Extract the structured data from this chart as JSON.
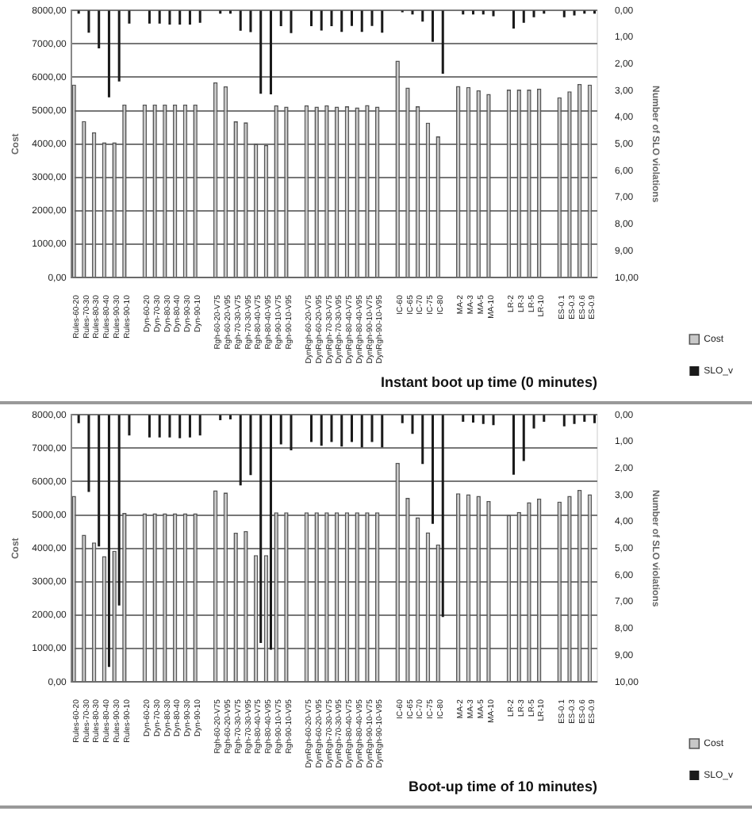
{
  "chart_data": [
    {
      "type": "bar",
      "xlabel": "Instant boot up time (0 minutes)",
      "ylabel": "Cost",
      "y2label": "Number of SLO violations",
      "categories": [
        "Rules-60-20",
        "Rules-70-30",
        "Rules-80-30",
        "Rules-80-40",
        "Rules-90-30",
        "Rules-90-10",
        null,
        "Dyn-60-20",
        "Dyn-70-30",
        "Dyn-80-30",
        "Dyn-80-40",
        "Dyn-90-30",
        "Dyn-90-10",
        null,
        "Rgh-60-20-V75",
        "Rgh-60-20-V95",
        "Rgh-70-30-V75",
        "Rgh-70-30-V95",
        "Rgh-80-40-V75",
        "Rgh-80-40-V95",
        "Rgh-90-10-V75",
        "Rgh-90-10-V95",
        null,
        "DynRgh-60-20-V75",
        "DynRgh-60-20-V95",
        "DynRgh-70-30-V75",
        "DynRgh-70-30-V95",
        "DynRgh-80-40-V75",
        "DynRgh-80-40-V95",
        "DynRgh-90-10-V75",
        "DynRgh-90-10-V95",
        null,
        "IC-60",
        "IC-65",
        "IC-70",
        "IC-75",
        "IC-80",
        null,
        "MA-2",
        "MA-3",
        "MA-5",
        "MA-10",
        null,
        "LR-2",
        "LR-3",
        "LR-5",
        "LR-10",
        null,
        "ES-0.1",
        "ES-0.3",
        "ES-0.6",
        "ES-0.9"
      ],
      "series": [
        {
          "name": "Cost",
          "color": "#c8c8c8",
          "values": [
            5780,
            4690,
            4350,
            4050,
            4050,
            5180,
            null,
            5180,
            5180,
            5180,
            5180,
            5180,
            5180,
            null,
            5850,
            5730,
            4680,
            4650,
            4010,
            3970,
            5160,
            5120,
            null,
            5160,
            5120,
            5160,
            5120,
            5130,
            5100,
            5170,
            5120,
            null,
            6500,
            5690,
            5130,
            4640,
            4230,
            null,
            5740,
            5710,
            5610,
            5500,
            null,
            5630,
            5630,
            5630,
            5660,
            null,
            5400,
            5580,
            5800,
            5780
          ]
        },
        {
          "name": "SLO_v",
          "color": "#1a1a1a",
          "axis": "y2",
          "values": [
            0.12,
            0.83,
            1.42,
            3.25,
            2.66,
            0.49,
            null,
            0.49,
            0.49,
            0.53,
            0.53,
            0.53,
            0.46,
            null,
            0.12,
            0.12,
            0.76,
            0.81,
            3.12,
            3.14,
            0.59,
            0.85,
            null,
            0.59,
            0.75,
            0.59,
            0.8,
            0.58,
            0.8,
            0.58,
            0.83,
            null,
            0.07,
            0.15,
            0.42,
            1.17,
            2.37,
            null,
            0.15,
            0.15,
            0.15,
            0.22,
            null,
            0.68,
            0.46,
            0.25,
            0.12,
            null,
            0.25,
            0.19,
            0.12,
            0.12
          ]
        }
      ],
      "ylim": [
        0,
        8000
      ],
      "yticks": [
        {
          "value": 0,
          "label": "0,00"
        },
        {
          "value": 1000,
          "label": "1000,00"
        },
        {
          "value": 2000,
          "label": "2000,00"
        },
        {
          "value": 3000,
          "label": "3000,00"
        },
        {
          "value": 4000,
          "label": "4000,00"
        },
        {
          "value": 5000,
          "label": "5000,00"
        },
        {
          "value": 6000,
          "label": "6000,00"
        },
        {
          "value": 7000,
          "label": "7000,00"
        },
        {
          "value": 8000,
          "label": "8000,00"
        }
      ],
      "y2lim": [
        10,
        0
      ],
      "y2ticks": [
        {
          "value": 0,
          "label": "0,00"
        },
        {
          "value": 1,
          "label": "1,00"
        },
        {
          "value": 2,
          "label": "2,00"
        },
        {
          "value": 3,
          "label": "3,00"
        },
        {
          "value": 4,
          "label": "4,00"
        },
        {
          "value": 5,
          "label": "5,00"
        },
        {
          "value": 6,
          "label": "6,00"
        },
        {
          "value": 7,
          "label": "7,00"
        },
        {
          "value": 8,
          "label": "8,00"
        },
        {
          "value": 9,
          "label": "9,00"
        },
        {
          "value": 10,
          "label": "10,00"
        }
      ],
      "grid": "y",
      "legend": "bottom right"
    },
    {
      "type": "bar",
      "xlabel": "Boot-up time of 10 minutes)",
      "ylabel": "Cost",
      "y2label": "Number of SLO violations",
      "categories": [
        "Rules-60-20",
        "Rules-70-30",
        "Rules-80-30",
        "Rules-80-40",
        "Rules-90-30",
        "Rules-90-10",
        null,
        "Dyn-60-20",
        "Dyn-70-30",
        "Dyn-80-30",
        "Dyn-80-40",
        "Dyn-90-30",
        "Dyn-90-10",
        null,
        "Rgh-60-20-V75",
        "Rgh-60-20-V95",
        "Rgh-70-30-V75",
        "Rgh-70-30-V95",
        "Rgh-80-40-V75",
        "Rgh-80-40-V95",
        "Rgh-90-10-V75",
        "Rgh-90-10-V95",
        null,
        "DynRgh-60-20-V75",
        "DynRgh-60-20-V95",
        "DynRgh-70-30-V75",
        "DynRgh-70-30-V95",
        "DynRgh-80-40-V75",
        "DynRgh-80-40-V95",
        "DynRgh-90-10-V75",
        "DynRgh-90-10-V95",
        null,
        "IC-60",
        "IC-65",
        "IC-70",
        "IC-75",
        "IC-80",
        null,
        "MA-2",
        "MA-3",
        "MA-5",
        "MA-10",
        null,
        "LR-2",
        "LR-3",
        "LR-5",
        "LR-10",
        null,
        "ES-0.1",
        "ES-0.3",
        "ES-0.6",
        "ES-0.9"
      ],
      "series": [
        {
          "name": "Cost",
          "color": "#c8c8c8",
          "values": [
            5570,
            4410,
            4180,
            3770,
            3930,
            5060,
            null,
            5050,
            5050,
            5050,
            5050,
            5050,
            5050,
            null,
            5740,
            5670,
            4470,
            4520,
            3800,
            3800,
            5080,
            5080,
            null,
            5080,
            5080,
            5080,
            5080,
            5080,
            5080,
            5080,
            5080,
            null,
            6560,
            5510,
            4930,
            4480,
            4120,
            null,
            5650,
            5620,
            5570,
            5420,
            null,
            5000,
            5090,
            5380,
            5490,
            null,
            5400,
            5570,
            5750,
            5620
          ]
        },
        {
          "name": "SLO_v",
          "color": "#1a1a1a",
          "axis": "y2",
          "values": [
            0.31,
            2.89,
            4.93,
            9.44,
            7.14,
            0.77,
            null,
            0.85,
            0.85,
            0.85,
            0.88,
            0.85,
            0.77,
            null,
            0.2,
            0.17,
            2.64,
            2.26,
            8.54,
            8.79,
            1.11,
            1.33,
            null,
            1.02,
            1.16,
            1.02,
            1.19,
            1.02,
            1.22,
            1.02,
            1.22,
            null,
            0.31,
            0.71,
            1.84,
            4.08,
            7.57,
            null,
            0.26,
            0.29,
            0.34,
            0.39,
            null,
            2.24,
            1.73,
            0.51,
            0.26,
            null,
            0.43,
            0.34,
            0.26,
            0.31
          ]
        }
      ],
      "ylim": [
        0,
        8000
      ],
      "yticks": [
        {
          "value": 0,
          "label": "0,00"
        },
        {
          "value": 1000,
          "label": "1000,00"
        },
        {
          "value": 2000,
          "label": "2000,00"
        },
        {
          "value": 3000,
          "label": "3000,00"
        },
        {
          "value": 4000,
          "label": "4000,00"
        },
        {
          "value": 5000,
          "label": "5000,00"
        },
        {
          "value": 6000,
          "label": "6000,00"
        },
        {
          "value": 7000,
          "label": "7000,00"
        },
        {
          "value": 8000,
          "label": "8000,00"
        }
      ],
      "y2lim": [
        10,
        0
      ],
      "y2ticks": [
        {
          "value": 0,
          "label": "0,00"
        },
        {
          "value": 1,
          "label": "1,00"
        },
        {
          "value": 2,
          "label": "2,00"
        },
        {
          "value": 3,
          "label": "3,00"
        },
        {
          "value": 4,
          "label": "4,00"
        },
        {
          "value": 5,
          "label": "5,00"
        },
        {
          "value": 6,
          "label": "6,00"
        },
        {
          "value": 7,
          "label": "7,00"
        },
        {
          "value": 8,
          "label": "8,00"
        },
        {
          "value": 9,
          "label": "9,00"
        },
        {
          "value": 10,
          "label": "10,00"
        }
      ],
      "grid": "y",
      "legend": "bottom right"
    }
  ]
}
